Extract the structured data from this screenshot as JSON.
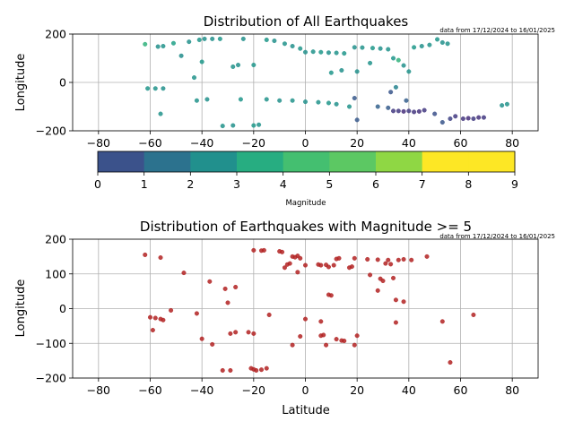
{
  "chart_data": [
    {
      "type": "scatter",
      "title": "Distribution of All Earthquakes",
      "annotation": "data from 17/12/2024 to 16/01/2025",
      "xlabel": "",
      "ylabel": "Longitude",
      "xlim": [
        -90,
        90
      ],
      "ylim": [
        -200,
        200
      ],
      "xticks": [
        -80,
        -60,
        -40,
        -20,
        0,
        20,
        40,
        60,
        80
      ],
      "yticks": [
        -200,
        0,
        200
      ],
      "grid": true,
      "colorbar": {
        "label": "Magnitude",
        "ticks": [
          0,
          1,
          2,
          3,
          4,
          5,
          6,
          7,
          8,
          9
        ],
        "colors": [
          "#3b528b",
          "#2c728e",
          "#21908d",
          "#27ad81",
          "#44bf70",
          "#5cc863",
          "#8fd744",
          "#fde725",
          "#fde725"
        ]
      },
      "points": [
        {
          "x": -62,
          "y": 158,
          "m": 5.8
        },
        {
          "x": -57,
          "y": 148,
          "m": 4.5
        },
        {
          "x": -55,
          "y": 150,
          "m": 4.6
        },
        {
          "x": -51,
          "y": 162,
          "m": 5.1
        },
        {
          "x": -48,
          "y": 110,
          "m": 4.4
        },
        {
          "x": -45,
          "y": 168,
          "m": 4.5
        },
        {
          "x": -43,
          "y": 20,
          "m": 4.6
        },
        {
          "x": -41,
          "y": 176,
          "m": 4.7
        },
        {
          "x": -39,
          "y": 180,
          "m": 4.5
        },
        {
          "x": -40,
          "y": 85,
          "m": 4.8
        },
        {
          "x": -36,
          "y": 180,
          "m": 4.5
        },
        {
          "x": -33,
          "y": 180,
          "m": 4.7
        },
        {
          "x": -28,
          "y": 65,
          "m": 4.6
        },
        {
          "x": -26,
          "y": 72,
          "m": 4.5
        },
        {
          "x": -24,
          "y": 180,
          "m": 4.5
        },
        {
          "x": -20,
          "y": 72,
          "m": 4.7
        },
        {
          "x": -15,
          "y": 176,
          "m": 4.8
        },
        {
          "x": -12,
          "y": 172,
          "m": 4.5
        },
        {
          "x": -8,
          "y": 160,
          "m": 4.6
        },
        {
          "x": -5,
          "y": 150,
          "m": 4.5
        },
        {
          "x": -2,
          "y": 140,
          "m": 4.7
        },
        {
          "x": 0,
          "y": 125,
          "m": 4.5
        },
        {
          "x": 3,
          "y": 127,
          "m": 4.6
        },
        {
          "x": 6,
          "y": 125,
          "m": 4.8
        },
        {
          "x": 9,
          "y": 123,
          "m": 4.5
        },
        {
          "x": 12,
          "y": 122,
          "m": 4.6
        },
        {
          "x": 15,
          "y": 120,
          "m": 4.7
        },
        {
          "x": 19,
          "y": 145,
          "m": 4.5
        },
        {
          "x": 22,
          "y": 144,
          "m": 4.6
        },
        {
          "x": 26,
          "y": 142,
          "m": 4.8
        },
        {
          "x": 29,
          "y": 140,
          "m": 4.5
        },
        {
          "x": 32,
          "y": 137,
          "m": 4.6
        },
        {
          "x": 34,
          "y": 100,
          "m": 4.7
        },
        {
          "x": 36,
          "y": 92,
          "m": 5.8
        },
        {
          "x": 38,
          "y": 70,
          "m": 4.5
        },
        {
          "x": 40,
          "y": 45,
          "m": 4.6
        },
        {
          "x": 42,
          "y": 145,
          "m": 4.8
        },
        {
          "x": 45,
          "y": 150,
          "m": 4.5
        },
        {
          "x": 48,
          "y": 155,
          "m": 4.6
        },
        {
          "x": 51,
          "y": 178,
          "m": 4.7
        },
        {
          "x": 53,
          "y": 165,
          "m": 4.5
        },
        {
          "x": 55,
          "y": 160,
          "m": 4.6
        },
        {
          "x": -61,
          "y": -25,
          "m": 4.7
        },
        {
          "x": -58,
          "y": -25,
          "m": 4.6
        },
        {
          "x": -55,
          "y": -25,
          "m": 4.5
        },
        {
          "x": -56,
          "y": -130,
          "m": 4.6
        },
        {
          "x": -42,
          "y": -75,
          "m": 4.6
        },
        {
          "x": -38,
          "y": -70,
          "m": 4.5
        },
        {
          "x": -32,
          "y": -180,
          "m": 4.6
        },
        {
          "x": -28,
          "y": -178,
          "m": 4.5
        },
        {
          "x": -25,
          "y": -70,
          "m": 4.7
        },
        {
          "x": -20,
          "y": -178,
          "m": 4.8
        },
        {
          "x": -18,
          "y": -175,
          "m": 4.6
        },
        {
          "x": -15,
          "y": -70,
          "m": 4.6
        },
        {
          "x": -10,
          "y": -75,
          "m": 4.5
        },
        {
          "x": -5,
          "y": -75,
          "m": 4.6
        },
        {
          "x": 0,
          "y": -80,
          "m": 4.5
        },
        {
          "x": 5,
          "y": -82,
          "m": 4.6
        },
        {
          "x": 9,
          "y": -85,
          "m": 4.7
        },
        {
          "x": 12,
          "y": -90,
          "m": 4.5
        },
        {
          "x": 17,
          "y": -100,
          "m": 4.6
        },
        {
          "x": 19,
          "y": -65,
          "m": 2.5
        },
        {
          "x": 20,
          "y": -155,
          "m": 2.5
        },
        {
          "x": 28,
          "y": -100,
          "m": 2.8
        },
        {
          "x": 32,
          "y": -105,
          "m": 2.6
        },
        {
          "x": 34,
          "y": -118,
          "m": 1.5
        },
        {
          "x": 36,
          "y": -118,
          "m": 1.5
        },
        {
          "x": 38,
          "y": -120,
          "m": 1.2
        },
        {
          "x": 40,
          "y": -118,
          "m": 1.6
        },
        {
          "x": 42,
          "y": -122,
          "m": 1.4
        },
        {
          "x": 44,
          "y": -120,
          "m": 1.3
        },
        {
          "x": 46,
          "y": -115,
          "m": 1.5
        },
        {
          "x": 39,
          "y": -75,
          "m": 2.7
        },
        {
          "x": 33,
          "y": -40,
          "m": 2.4
        },
        {
          "x": 35,
          "y": -20,
          "m": 4.0
        },
        {
          "x": 50,
          "y": -130,
          "m": 2.2
        },
        {
          "x": 53,
          "y": -165,
          "m": 2.4
        },
        {
          "x": 56,
          "y": -150,
          "m": 1.8
        },
        {
          "x": 58,
          "y": -140,
          "m": 1.5
        },
        {
          "x": 61,
          "y": -150,
          "m": 1.4
        },
        {
          "x": 63,
          "y": -148,
          "m": 1.2
        },
        {
          "x": 65,
          "y": -150,
          "m": 1.6
        },
        {
          "x": 67,
          "y": -145,
          "m": 1.3
        },
        {
          "x": 69,
          "y": -145,
          "m": 1.5
        },
        {
          "x": 76,
          "y": -95,
          "m": 4.5
        },
        {
          "x": 78,
          "y": -90,
          "m": 4.6
        },
        {
          "x": 20,
          "y": 45,
          "m": 4.5
        },
        {
          "x": 25,
          "y": 80,
          "m": 4.6
        },
        {
          "x": 14,
          "y": 50,
          "m": 4.5
        },
        {
          "x": 10,
          "y": 40,
          "m": 4.7
        }
      ]
    },
    {
      "type": "scatter",
      "title": "Distribution of Earthquakes with Magnitude >= 5",
      "annotation": "data from 17/12/2024 to 16/01/2025",
      "xlabel": "Latitude",
      "ylabel": "Longitude",
      "xlim": [
        -90,
        90
      ],
      "ylim": [
        -200,
        200
      ],
      "xticks": [
        -80,
        -60,
        -40,
        -20,
        0,
        20,
        40,
        60,
        80
      ],
      "yticks": [
        -200,
        -100,
        0,
        100,
        200
      ],
      "grid": true,
      "point_color": "#b22222",
      "points": [
        {
          "x": -62,
          "y": 155
        },
        {
          "x": -56,
          "y": 147
        },
        {
          "x": -47,
          "y": 103
        },
        {
          "x": -59,
          "y": -62
        },
        {
          "x": -60,
          "y": -25
        },
        {
          "x": -58,
          "y": -27
        },
        {
          "x": -56,
          "y": -30
        },
        {
          "x": -55,
          "y": -33
        },
        {
          "x": -52,
          "y": -5
        },
        {
          "x": -42,
          "y": -14
        },
        {
          "x": -37,
          "y": 78
        },
        {
          "x": -31,
          "y": 57
        },
        {
          "x": -27,
          "y": 62
        },
        {
          "x": -30,
          "y": 17
        },
        {
          "x": -40,
          "y": -87
        },
        {
          "x": -36,
          "y": -103
        },
        {
          "x": -29,
          "y": -72
        },
        {
          "x": -27,
          "y": -68
        },
        {
          "x": -22,
          "y": -68
        },
        {
          "x": -20,
          "y": -72
        },
        {
          "x": -32,
          "y": -178
        },
        {
          "x": -29,
          "y": -178
        },
        {
          "x": -21,
          "y": -172
        },
        {
          "x": -20,
          "y": -175
        },
        {
          "x": -19,
          "y": -178
        },
        {
          "x": -17,
          "y": -176
        },
        {
          "x": -15,
          "y": -172
        },
        {
          "x": -14,
          "y": -18
        },
        {
          "x": -20,
          "y": 168
        },
        {
          "x": -17,
          "y": 167
        },
        {
          "x": -16,
          "y": 168
        },
        {
          "x": -10,
          "y": 165
        },
        {
          "x": -9,
          "y": 163
        },
        {
          "x": -8,
          "y": 118
        },
        {
          "x": -7,
          "y": 127
        },
        {
          "x": -6,
          "y": 130
        },
        {
          "x": -5,
          "y": 150
        },
        {
          "x": -4,
          "y": 148
        },
        {
          "x": -3,
          "y": 152
        },
        {
          "x": -2,
          "y": 145
        },
        {
          "x": -3,
          "y": 105
        },
        {
          "x": 0,
          "y": 125
        },
        {
          "x": 0,
          "y": -30
        },
        {
          "x": -5,
          "y": -105
        },
        {
          "x": -2,
          "y": -80
        },
        {
          "x": 5,
          "y": 127
        },
        {
          "x": 6,
          "y": 125
        },
        {
          "x": 8,
          "y": 126
        },
        {
          "x": 9,
          "y": 120
        },
        {
          "x": 11,
          "y": 125
        },
        {
          "x": 12,
          "y": 143
        },
        {
          "x": 13,
          "y": 145
        },
        {
          "x": 9,
          "y": 40
        },
        {
          "x": 10,
          "y": 38
        },
        {
          "x": 6,
          "y": -37
        },
        {
          "x": 6,
          "y": -78
        },
        {
          "x": 7,
          "y": -76
        },
        {
          "x": 8,
          "y": -105
        },
        {
          "x": 12,
          "y": -88
        },
        {
          "x": 14,
          "y": -92
        },
        {
          "x": 15,
          "y": -93
        },
        {
          "x": 17,
          "y": 118
        },
        {
          "x": 18,
          "y": 121
        },
        {
          "x": 19,
          "y": 145
        },
        {
          "x": 19,
          "y": -105
        },
        {
          "x": 20,
          "y": -78
        },
        {
          "x": 24,
          "y": 142
        },
        {
          "x": 25,
          "y": 97
        },
        {
          "x": 28,
          "y": 141
        },
        {
          "x": 28,
          "y": 52
        },
        {
          "x": 29,
          "y": 86
        },
        {
          "x": 30,
          "y": 80
        },
        {
          "x": 31,
          "y": 130
        },
        {
          "x": 32,
          "y": 140
        },
        {
          "x": 33,
          "y": 128
        },
        {
          "x": 34,
          "y": 88
        },
        {
          "x": 35,
          "y": -40
        },
        {
          "x": 35,
          "y": 25
        },
        {
          "x": 36,
          "y": 140
        },
        {
          "x": 38,
          "y": 142
        },
        {
          "x": 38,
          "y": 20
        },
        {
          "x": 41,
          "y": 140
        },
        {
          "x": 47,
          "y": 150
        },
        {
          "x": 53,
          "y": -37
        },
        {
          "x": 56,
          "y": -155
        },
        {
          "x": 65,
          "y": -18
        }
      ]
    }
  ]
}
